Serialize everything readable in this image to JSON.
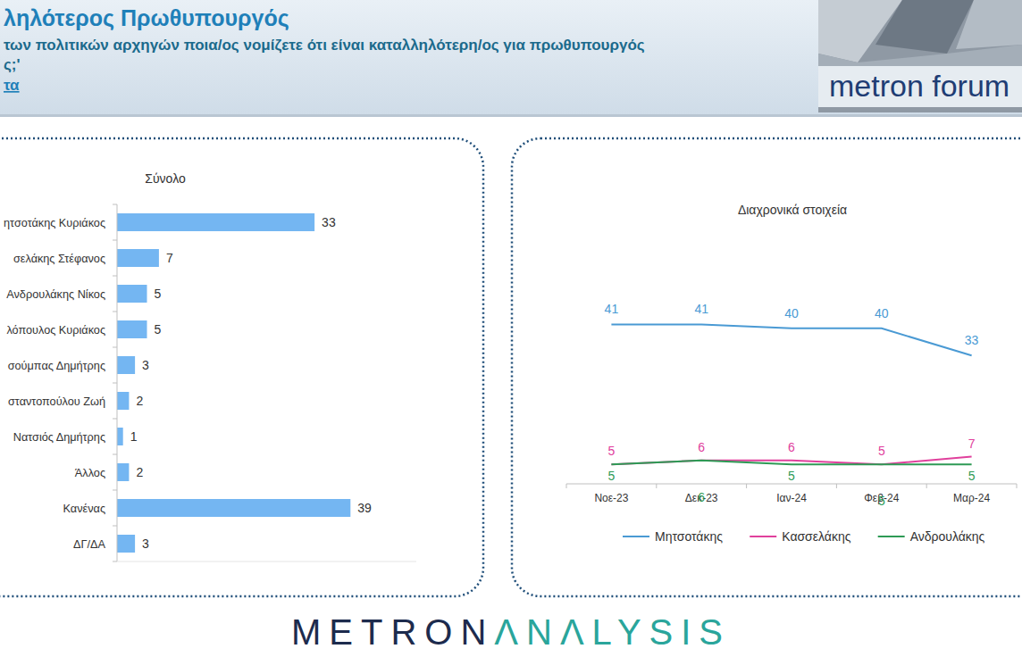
{
  "header": {
    "title": "ληλότερος Πρωθυπουργός",
    "question": "των πολιτικών αρχηγών ποια/ος νομίζετε ότι είναι καταλληλότερη/ος για πρωθυπουργός",
    "question_end": "ς;'",
    "link": "τα"
  },
  "logo": "metron forum",
  "footer": {
    "brand_first": "METRON",
    "brand_second": "ΛNΛLYSIS"
  },
  "chart_data": [
    {
      "type": "bar",
      "title": "Σύνολο",
      "orientation": "horizontal",
      "categories": [
        "ητσοτάκης Κυριάκος",
        "σελάκης Στέφανος",
        "Ανδρουλάκης Νίκος",
        "λόπουλος Κυριάκος",
        "σούμπας Δημήτρης",
        "σταντοπούλου Ζωή",
        "Νατσιός Δημήτρης",
        "Άλλος",
        "Κανένας",
        "ΔΓ/ΔΑ"
      ],
      "values": [
        33,
        7,
        5,
        5,
        3,
        2,
        1,
        2,
        39,
        3
      ],
      "color": "#74b6f2",
      "xlim": [
        0,
        50
      ],
      "data_labels": true,
      "tick_labels": "y"
    },
    {
      "type": "line",
      "title": "Διαχρονικά στοιχεία",
      "categories": [
        "Νοε-23",
        "Δεκ-23",
        "Ιαν-24",
        "Φεβ-24",
        "Μαρ-24"
      ],
      "series": [
        {
          "name": "Μητσοτάκης",
          "color": "#4a9ad4",
          "values": [
            41,
            41,
            40,
            40,
            33
          ]
        },
        {
          "name": "Κασσελάκης",
          "color": "#e0409c",
          "values": [
            5,
            6,
            6,
            5,
            7
          ]
        },
        {
          "name": "Ανδρουλάκης",
          "color": "#2e9a55",
          "values": [
            5,
            6,
            5,
            5,
            5
          ]
        }
      ],
      "ylim": [
        0,
        45
      ],
      "data_labels": true,
      "legend": "bottom",
      "tick_labels": "x"
    }
  ]
}
